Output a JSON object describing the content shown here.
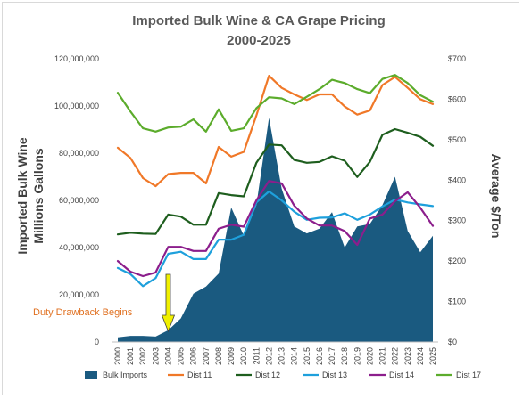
{
  "chart_data": {
    "type": "area+line",
    "title": "Imported Bulk Wine & CA Grape Pricing",
    "subtitle": "2000-2025",
    "ylabel_left": "Imported Bulk Wine\nMillions Gallons",
    "ylabel_right": "Average $/Ton",
    "ylim_left": [
      0,
      120000000
    ],
    "ylim_right": [
      0,
      700
    ],
    "left_ticks": [
      "0",
      "20,000,000",
      "40,000,000",
      "60,000,000",
      "80,000,000",
      "100,000,000",
      "120,000,000"
    ],
    "right_ticks": [
      "$0",
      "$100",
      "$200",
      "$300",
      "$400",
      "$500",
      "$600",
      "$700"
    ],
    "categories": [
      "2000",
      "2001",
      "2002",
      "2003",
      "2004",
      "2005",
      "2006",
      "2007",
      "2008",
      "2009",
      "2010",
      "2011",
      "2012",
      "2013",
      "2014",
      "2015",
      "2016",
      "2017",
      "2018",
      "2019",
      "2020",
      "2021",
      "2022",
      "2023",
      "2024",
      "2025"
    ],
    "area": {
      "name": "Bulk Imports",
      "color": "#1a5a80",
      "values": [
        2000000,
        2600000,
        2600000,
        2300000,
        5000000,
        10000000,
        20500000,
        23500000,
        29000000,
        57000000,
        45000000,
        58000000,
        95000000,
        65000000,
        49000000,
        46000000,
        48000000,
        55000000,
        40000000,
        49000000,
        50000000,
        58000000,
        70000000,
        47000000,
        38000000,
        45000000
      ]
    },
    "series": [
      {
        "name": "Dist 11",
        "color": "#f07828",
        "values": [
          480,
          455,
          405,
          385,
          415,
          418,
          418,
          392,
          482,
          458,
          470,
          560,
          658,
          628,
          612,
          598,
          612,
          612,
          582,
          562,
          572,
          635,
          655,
          628,
          600,
          588
        ]
      },
      {
        "name": "Dist 12",
        "color": "#1e5e1e",
        "values": [
          266,
          270,
          268,
          267,
          315,
          310,
          290,
          290,
          368,
          363,
          360,
          443,
          488,
          486,
          450,
          443,
          445,
          459,
          448,
          408,
          445,
          512,
          526,
          517,
          507,
          485
        ]
      },
      {
        "name": "Dist 13",
        "color": "#1ea0dc",
        "values": [
          183,
          168,
          138,
          158,
          218,
          223,
          205,
          205,
          253,
          253,
          265,
          345,
          372,
          350,
          322,
          302,
          307,
          308,
          318,
          302,
          315,
          335,
          352,
          345,
          340,
          336
        ]
      },
      {
        "name": "Dist 14",
        "color": "#8c1e8c",
        "values": [
          200,
          174,
          163,
          172,
          235,
          235,
          225,
          225,
          280,
          290,
          285,
          350,
          398,
          392,
          337,
          305,
          288,
          288,
          274,
          240,
          305,
          315,
          348,
          370,
          332,
          287
        ]
      },
      {
        "name": "Dist 17",
        "color": "#5cac2c",
        "values": [
          616,
          570,
          528,
          520,
          530,
          532,
          550,
          520,
          575,
          522,
          528,
          578,
          605,
          602,
          588,
          606,
          625,
          648,
          640,
          625,
          615,
          650,
          660,
          640,
          610,
          594
        ]
      }
    ],
    "annotation": {
      "text": "Duty Drawback Begins",
      "x": "2004",
      "color": "#e07020",
      "arrow_color": "#f0f000"
    },
    "legend_position": "bottom",
    "grid": false
  }
}
